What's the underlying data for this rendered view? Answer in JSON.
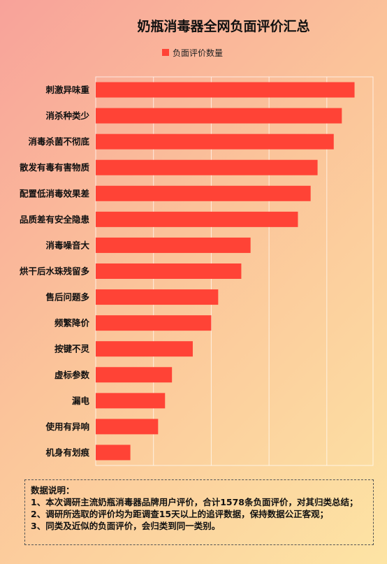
{
  "chart_data": {
    "type": "bar",
    "orientation": "horizontal",
    "title": "奶瓶消毒器全网负面评价汇总",
    "legend": {
      "position": "top-center",
      "entries": [
        "负面评价数量"
      ]
    },
    "series": [
      {
        "name": "负面评价数量",
        "color": "#ff4336",
        "values": [
          224,
          213,
          206,
          192,
          186,
          175,
          134,
          126,
          106,
          100,
          84,
          66,
          60,
          54,
          30
        ]
      }
    ],
    "categories": [
      "刺激异味重",
      "消杀种类少",
      "消毒杀菌不彻底",
      "散发有毒有害物质",
      "配置低消毒效果差",
      "品质差有安全隐患",
      "消毒噪音大",
      "烘干后水珠残留多",
      "售后问题多",
      "频繁降价",
      "按键不灵",
      "虚标参数",
      "漏电",
      "使用有异响",
      "机身有划痕"
    ],
    "xlim": [
      0,
      240
    ],
    "grid": true
  },
  "notes": {
    "heading": "数据说明：",
    "lines": [
      "1、本次调研主流奶瓶消毒器品牌用户评价，合计1578条负面评价，对其归类总结；",
      "2、调研所选取的评价均为距调查15天以上的追评数据，保持数据公正客观；",
      "3、同类及近似的负面评价，会归类到同一类别。"
    ]
  }
}
